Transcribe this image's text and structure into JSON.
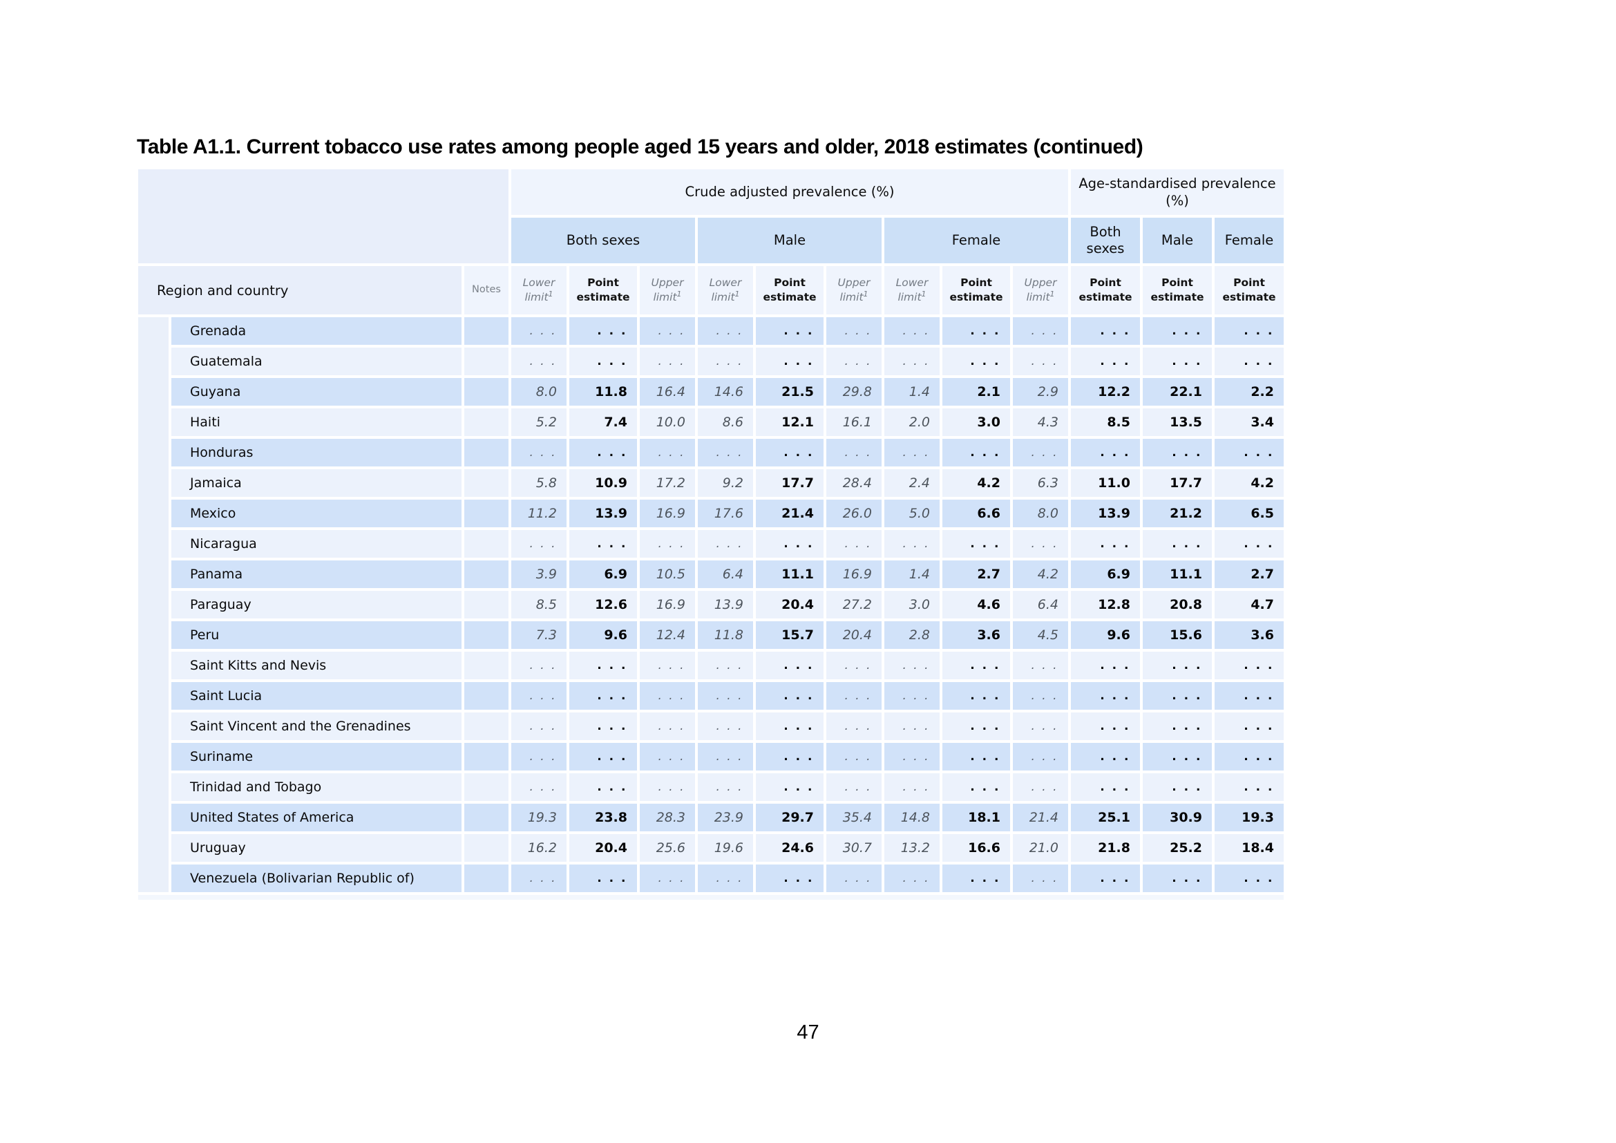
{
  "page": {
    "title": "Table A1.1. Current tobacco use rates among people aged 15 years and older, 2018 estimates (continued)",
    "page_number": "47"
  },
  "colors": {
    "row-dark": "#d1e2f9",
    "row-light": "#ecf2fc",
    "header-left": "#e8eefa",
    "header-light": "#eff4fd",
    "header-sex": "#cce0f7",
    "gutter": "#eaf0fa",
    "footer-strip": "#f3f7fd"
  },
  "table": {
    "dots": ". . .",
    "group_headers": {
      "crude": "Crude adjusted prevalence (%)",
      "age_standardised": "Age-standardised prevalence (%)"
    },
    "sex_headers": {
      "both": "Both sexes",
      "male": "Male",
      "female": "Female"
    },
    "col_headers": {
      "region": "Region and country",
      "notes": "Notes",
      "lower": "Lower limit",
      "upper": "Upper limit",
      "point": "Point estimate",
      "footnote_marker": "1"
    },
    "rows": [
      {
        "country": "Grenada",
        "values": [
          ". . .",
          ". . .",
          ". . .",
          ". . .",
          ". . .",
          ". . .",
          ". . .",
          ". . .",
          ". . .",
          ". . .",
          ". . .",
          ". . ."
        ]
      },
      {
        "country": "Guatemala",
        "values": [
          ". . .",
          ". . .",
          ". . .",
          ". . .",
          ". . .",
          ". . .",
          ". . .",
          ". . .",
          ". . .",
          ". . .",
          ". . .",
          ". . ."
        ]
      },
      {
        "country": "Guyana",
        "values": [
          "8.0",
          "11.8",
          "16.4",
          "14.6",
          "21.5",
          "29.8",
          "1.4",
          "2.1",
          "2.9",
          "12.2",
          "22.1",
          "2.2"
        ]
      },
      {
        "country": "Haiti",
        "values": [
          "5.2",
          "7.4",
          "10.0",
          "8.6",
          "12.1",
          "16.1",
          "2.0",
          "3.0",
          "4.3",
          "8.5",
          "13.5",
          "3.4"
        ]
      },
      {
        "country": "Honduras",
        "values": [
          ". . .",
          ". . .",
          ". . .",
          ". . .",
          ". . .",
          ". . .",
          ". . .",
          ". . .",
          ". . .",
          ". . .",
          ". . .",
          ". . ."
        ]
      },
      {
        "country": "Jamaica",
        "values": [
          "5.8",
          "10.9",
          "17.2",
          "9.2",
          "17.7",
          "28.4",
          "2.4",
          "4.2",
          "6.3",
          "11.0",
          "17.7",
          "4.2"
        ]
      },
      {
        "country": "Mexico",
        "values": [
          "11.2",
          "13.9",
          "16.9",
          "17.6",
          "21.4",
          "26.0",
          "5.0",
          "6.6",
          "8.0",
          "13.9",
          "21.2",
          "6.5"
        ]
      },
      {
        "country": "Nicaragua",
        "values": [
          ". . .",
          ". . .",
          ". . .",
          ". . .",
          ". . .",
          ". . .",
          ". . .",
          ". . .",
          ". . .",
          ". . .",
          ". . .",
          ". . ."
        ]
      },
      {
        "country": "Panama",
        "values": [
          "3.9",
          "6.9",
          "10.5",
          "6.4",
          "11.1",
          "16.9",
          "1.4",
          "2.7",
          "4.2",
          "6.9",
          "11.1",
          "2.7"
        ]
      },
      {
        "country": "Paraguay",
        "values": [
          "8.5",
          "12.6",
          "16.9",
          "13.9",
          "20.4",
          "27.2",
          "3.0",
          "4.6",
          "6.4",
          "12.8",
          "20.8",
          "4.7"
        ]
      },
      {
        "country": "Peru",
        "values": [
          "7.3",
          "9.6",
          "12.4",
          "11.8",
          "15.7",
          "20.4",
          "2.8",
          "3.6",
          "4.5",
          "9.6",
          "15.6",
          "3.6"
        ]
      },
      {
        "country": "Saint Kitts and Nevis",
        "values": [
          ". . .",
          ". . .",
          ". . .",
          ". . .",
          ". . .",
          ". . .",
          ". . .",
          ". . .",
          ". . .",
          ". . .",
          ". . .",
          ". . ."
        ]
      },
      {
        "country": "Saint Lucia",
        "values": [
          ". . .",
          ". . .",
          ". . .",
          ". . .",
          ". . .",
          ". . .",
          ". . .",
          ". . .",
          ". . .",
          ". . .",
          ". . .",
          ". . ."
        ]
      },
      {
        "country": "Saint Vincent and the Grenadines",
        "values": [
          ". . .",
          ". . .",
          ". . .",
          ". . .",
          ". . .",
          ". . .",
          ". . .",
          ". . .",
          ". . .",
          ". . .",
          ". . .",
          ". . ."
        ]
      },
      {
        "country": "Suriname",
        "values": [
          ". . .",
          ". . .",
          ". . .",
          ". . .",
          ". . .",
          ". . .",
          ". . .",
          ". . .",
          ". . .",
          ". . .",
          ". . .",
          ". . ."
        ]
      },
      {
        "country": "Trinidad and Tobago",
        "values": [
          ". . .",
          ". . .",
          ". . .",
          ". . .",
          ". . .",
          ". . .",
          ". . .",
          ". . .",
          ". . .",
          ". . .",
          ". . .",
          ". . ."
        ]
      },
      {
        "country": "United States of America",
        "values": [
          "19.3",
          "23.8",
          "28.3",
          "23.9",
          "29.7",
          "35.4",
          "14.8",
          "18.1",
          "21.4",
          "25.1",
          "30.9",
          "19.3"
        ]
      },
      {
        "country": "Uruguay",
        "values": [
          "16.2",
          "20.4",
          "25.6",
          "19.6",
          "24.6",
          "30.7",
          "13.2",
          "16.6",
          "21.0",
          "21.8",
          "25.2",
          "18.4"
        ]
      },
      {
        "country": "Venezuela (Bolivarian Republic of)",
        "values": [
          ". . .",
          ". . .",
          ". . .",
          ". . .",
          ". . .",
          ". . .",
          ". . .",
          ". . .",
          ". . .",
          ". . .",
          ". . .",
          ". . ."
        ]
      }
    ]
  }
}
